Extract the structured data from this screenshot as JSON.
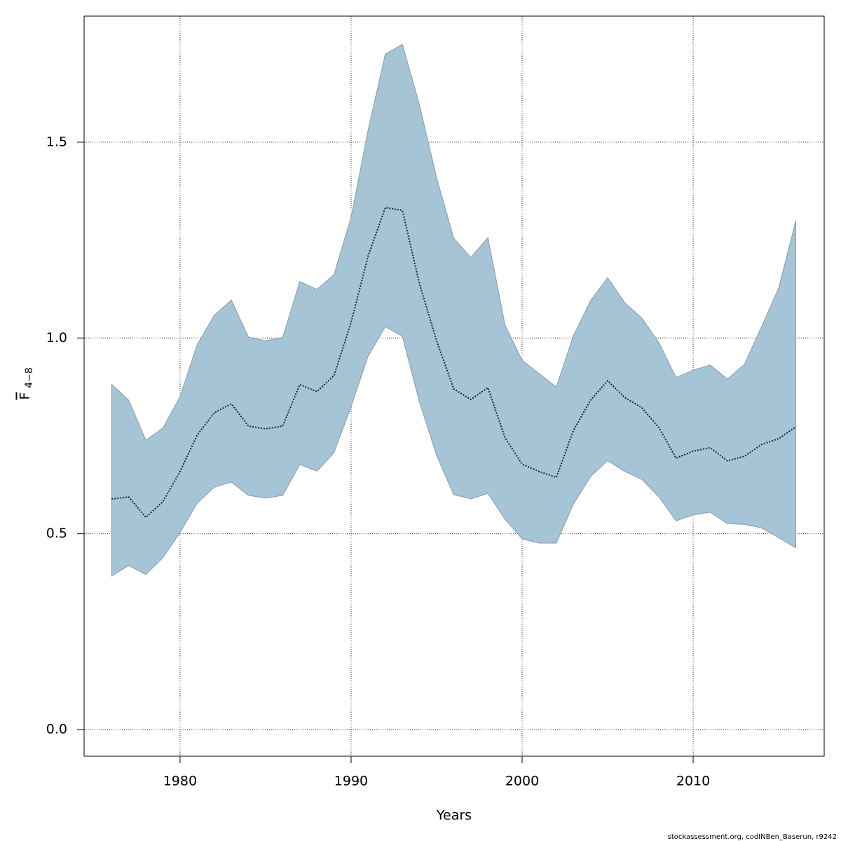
{
  "chart_data": {
    "type": "band-line",
    "x_label": "Years",
    "y_label": "F",
    "y_label_subscript": "4−8",
    "footnote": "stockassessment.org, codINBen_Baserun, r9242",
    "x": [
      1976,
      1977,
      1978,
      1979,
      1980,
      1981,
      1982,
      1983,
      1984,
      1985,
      1986,
      1987,
      1988,
      1989,
      1990,
      1991,
      1992,
      1993,
      1994,
      1995,
      1996,
      1997,
      1998,
      1999,
      2000,
      2001,
      2002,
      2003,
      2004,
      2005,
      2006,
      2007,
      2008,
      2009,
      2010,
      2011,
      2012,
      2013,
      2014,
      2015,
      2016
    ],
    "line": {
      "color": "#0a2a3a",
      "values": [
        0.589,
        0.594,
        0.542,
        0.582,
        0.659,
        0.752,
        0.809,
        0.832,
        0.775,
        0.768,
        0.775,
        0.881,
        0.863,
        0.904,
        1.04,
        1.21,
        1.333,
        1.326,
        1.138,
        0.993,
        0.87,
        0.843,
        0.873,
        0.745,
        0.678,
        0.659,
        0.644,
        0.764,
        0.841,
        0.891,
        0.848,
        0.822,
        0.771,
        0.693,
        0.711,
        0.72,
        0.686,
        0.698,
        0.728,
        0.743,
        0.773
      ]
    },
    "band": {
      "color": "#a5c4d6",
      "lower": [
        0.392,
        0.419,
        0.396,
        0.439,
        0.503,
        0.578,
        0.619,
        0.632,
        0.598,
        0.591,
        0.598,
        0.677,
        0.66,
        0.707,
        0.825,
        0.954,
        1.029,
        1.004,
        0.836,
        0.7,
        0.6,
        0.589,
        0.603,
        0.537,
        0.487,
        0.476,
        0.476,
        0.576,
        0.646,
        0.687,
        0.659,
        0.639,
        0.594,
        0.533,
        0.548,
        0.555,
        0.526,
        0.524,
        0.515,
        0.49,
        0.464
      ],
      "upper": [
        0.882,
        0.841,
        0.739,
        0.77,
        0.85,
        0.983,
        1.058,
        1.097,
        1.002,
        0.993,
        1.001,
        1.144,
        1.124,
        1.162,
        1.308,
        1.532,
        1.725,
        1.75,
        1.595,
        1.409,
        1.255,
        1.206,
        1.256,
        1.033,
        0.943,
        0.909,
        0.875,
        1.006,
        1.095,
        1.154,
        1.09,
        1.051,
        0.988,
        0.899,
        0.918,
        0.931,
        0.895,
        0.933,
        1.029,
        1.128,
        1.299
      ]
    },
    "xlim": [
      1974.39,
      2017.66
    ],
    "ylim": [
      -0.068,
      1.822
    ],
    "xticks": [
      1980,
      1990,
      2000,
      2010
    ],
    "yticks": [
      {
        "value": 0,
        "label": "0.0"
      },
      0.5,
      {
        "value": 1,
        "label": "1.0"
      },
      1.5
    ],
    "grid": true
  }
}
